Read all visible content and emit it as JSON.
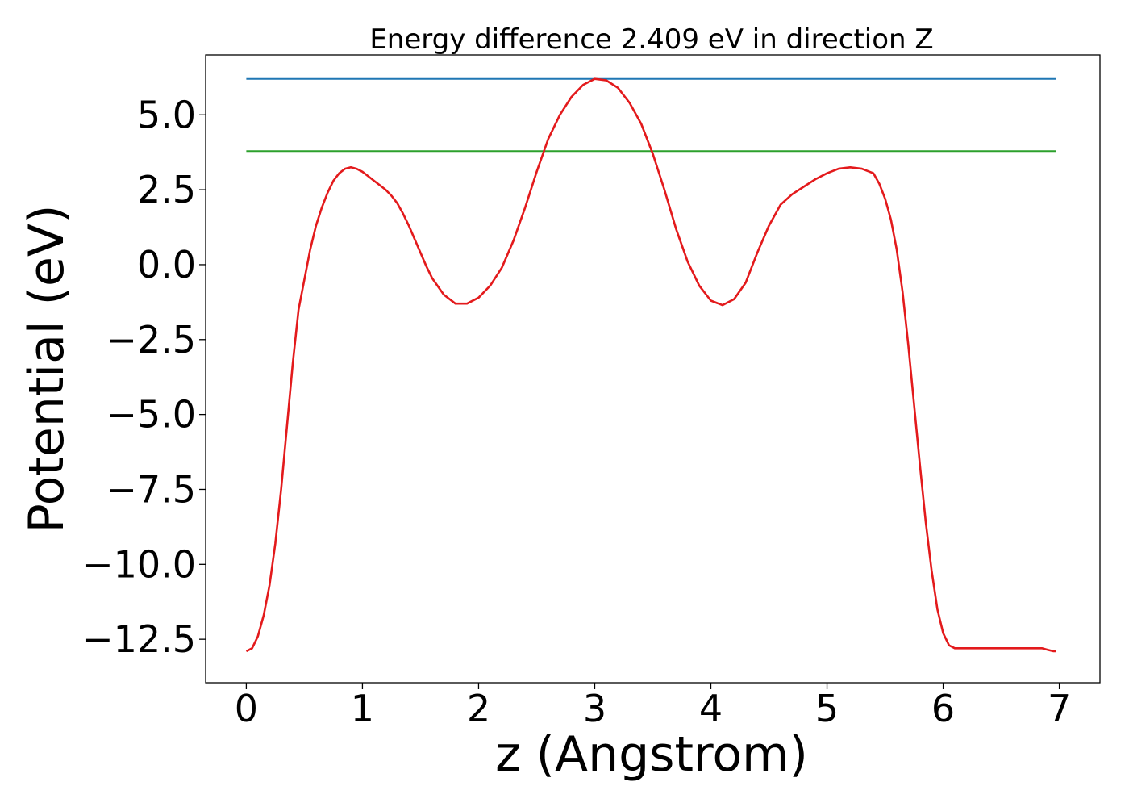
{
  "chart_data": {
    "type": "line",
    "title": "Energy difference 2.409 eV in direction Z",
    "xlabel": "z (Angstrom)",
    "ylabel": "Potential (eV)",
    "xlim": [
      -0.35,
      7.35
    ],
    "ylim": [
      -13.95,
      7.0
    ],
    "xticks": [
      0,
      1,
      2,
      3,
      4,
      5,
      6,
      7
    ],
    "xtick_labels": [
      "0",
      "1",
      "2",
      "3",
      "4",
      "5",
      "6",
      "7"
    ],
    "yticks": [
      -12.5,
      -10.0,
      -7.5,
      -5.0,
      -2.5,
      0.0,
      2.5,
      5.0
    ],
    "ytick_labels": [
      "−12.5",
      "−10.0",
      "−7.5",
      "−5.0",
      "−2.5",
      "0.0",
      "2.5",
      "5.0"
    ],
    "grid": false,
    "series": [
      {
        "color": "#1f77b4",
        "x": [
          0,
          6.97
        ],
        "y": [
          6.2,
          6.2
        ]
      },
      {
        "color": "#2ca02c",
        "x": [
          0,
          6.97
        ],
        "y": [
          3.79,
          3.79
        ]
      },
      {
        "color": "#e31a1c",
        "x": [
          0,
          0.05,
          0.1,
          0.15,
          0.2,
          0.25,
          0.3,
          0.35,
          0.4,
          0.45,
          0.5,
          0.55,
          0.6,
          0.65,
          0.7,
          0.75,
          0.8,
          0.85,
          0.9,
          0.95,
          1.0,
          1.05,
          1.1,
          1.15,
          1.2,
          1.25,
          1.3,
          1.35,
          1.4,
          1.45,
          1.5,
          1.55,
          1.6,
          1.7,
          1.8,
          1.9,
          2.0,
          2.1,
          2.2,
          2.3,
          2.4,
          2.5,
          2.6,
          2.7,
          2.8,
          2.9,
          3.0,
          3.1,
          3.2,
          3.3,
          3.4,
          3.5,
          3.6,
          3.7,
          3.8,
          3.9,
          4.0,
          4.1,
          4.2,
          4.3,
          4.4,
          4.5,
          4.6,
          4.7,
          4.8,
          4.9,
          5.0,
          5.1,
          5.2,
          5.3,
          5.4,
          5.45,
          5.5,
          5.55,
          5.6,
          5.65,
          5.7,
          5.75,
          5.8,
          5.85,
          5.9,
          5.95,
          6.0,
          6.05,
          6.1,
          6.15,
          6.2,
          6.25,
          6.3,
          6.35,
          6.4,
          6.45,
          6.5,
          6.55,
          6.6,
          6.65,
          6.7,
          6.75,
          6.8,
          6.85,
          6.9,
          6.95,
          6.97
        ],
        "y": [
          -12.9,
          -12.8,
          -12.4,
          -11.7,
          -10.7,
          -9.3,
          -7.5,
          -5.4,
          -3.3,
          -1.5,
          -0.5,
          0.5,
          1.3,
          1.9,
          2.4,
          2.8,
          3.05,
          3.2,
          3.25,
          3.2,
          3.1,
          2.95,
          2.8,
          2.65,
          2.5,
          2.3,
          2.05,
          1.7,
          1.3,
          0.85,
          0.4,
          -0.05,
          -0.45,
          -1.0,
          -1.3,
          -1.3,
          -1.1,
          -0.7,
          -0.1,
          0.8,
          1.9,
          3.1,
          4.2,
          5.0,
          5.6,
          6.0,
          6.2,
          6.15,
          5.9,
          5.4,
          4.7,
          3.7,
          2.5,
          1.2,
          0.1,
          -0.7,
          -1.2,
          -1.35,
          -1.15,
          -0.6,
          0.4,
          1.3,
          2.0,
          2.35,
          2.6,
          2.85,
          3.05,
          3.2,
          3.25,
          3.2,
          3.05,
          2.7,
          2.2,
          1.5,
          0.5,
          -0.9,
          -2.7,
          -4.7,
          -6.7,
          -8.6,
          -10.2,
          -11.5,
          -12.3,
          -12.7,
          -12.8,
          -12.8,
          -12.8,
          -12.8,
          -12.8,
          -12.8,
          -12.8,
          -12.8,
          -12.8,
          -12.8,
          -12.8,
          -12.8,
          -12.8,
          -12.8,
          -12.8,
          -12.8,
          -12.85,
          -12.9,
          -12.9
        ]
      }
    ]
  }
}
